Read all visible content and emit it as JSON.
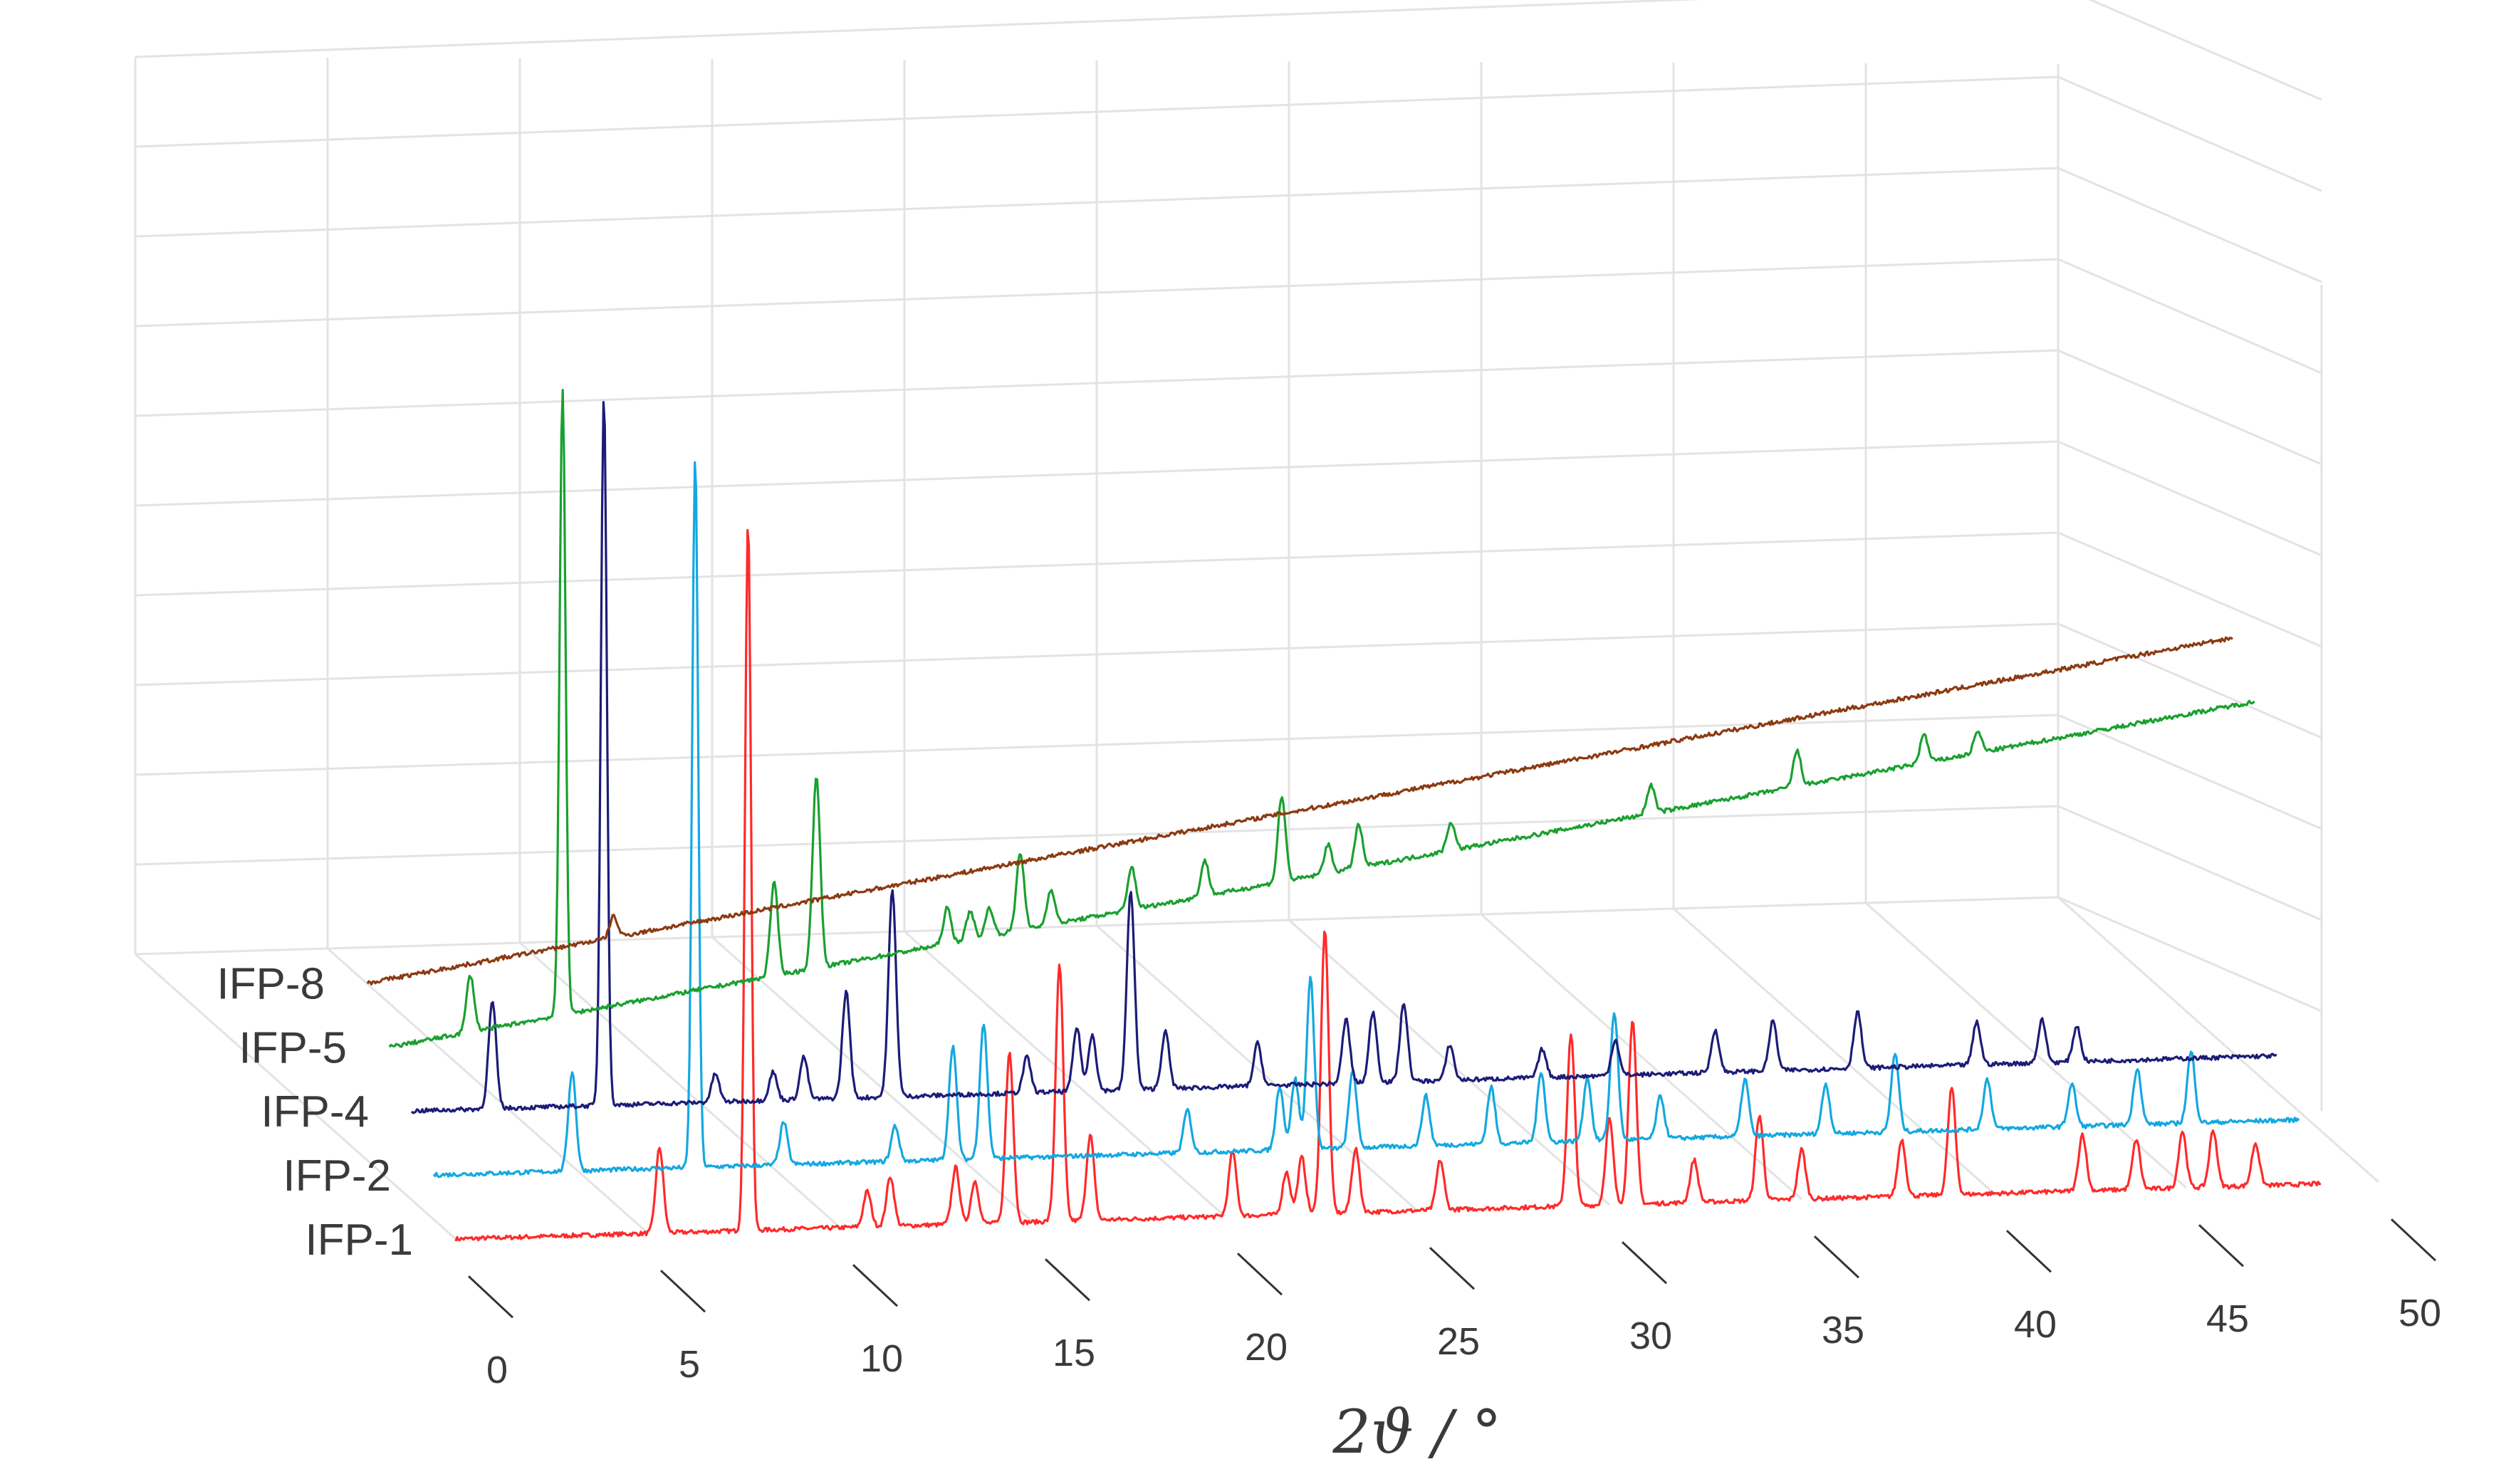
{
  "chart_data": {
    "type": "line",
    "title": "",
    "xlabel": "2ϑ / °",
    "ylabel": "",
    "xlim": [
      0,
      50
    ],
    "x_ticks": [
      "0",
      "5",
      "10",
      "15",
      "20",
      "25",
      "30",
      "35",
      "40",
      "45",
      "50"
    ],
    "grid": true,
    "view": "3D waterfall (offset stacked series)",
    "series": [
      {
        "name": "IFP-1",
        "color": "#ff2a2a",
        "baseline_trend": 0.0,
        "peaks": [
          {
            "x": 5.3,
            "h": 0.12
          },
          {
            "x": 7.6,
            "h": 1.0
          },
          {
            "x": 10.7,
            "h": 0.05
          },
          {
            "x": 11.3,
            "h": 0.07
          },
          {
            "x": 13.0,
            "h": 0.08
          },
          {
            "x": 13.5,
            "h": 0.06
          },
          {
            "x": 14.4,
            "h": 0.24
          },
          {
            "x": 15.7,
            "h": 0.36
          },
          {
            "x": 16.5,
            "h": 0.12
          },
          {
            "x": 20.2,
            "h": 0.09
          },
          {
            "x": 21.6,
            "h": 0.06
          },
          {
            "x": 22.0,
            "h": 0.08
          },
          {
            "x": 22.6,
            "h": 0.4
          },
          {
            "x": 23.4,
            "h": 0.09
          },
          {
            "x": 25.6,
            "h": 0.07
          },
          {
            "x": 29.0,
            "h": 0.24
          },
          {
            "x": 30.0,
            "h": 0.12
          },
          {
            "x": 30.6,
            "h": 0.26
          },
          {
            "x": 32.2,
            "h": 0.06
          },
          {
            "x": 33.9,
            "h": 0.12
          },
          {
            "x": 35.0,
            "h": 0.07
          },
          {
            "x": 37.6,
            "h": 0.08
          },
          {
            "x": 38.9,
            "h": 0.15
          },
          {
            "x": 42.3,
            "h": 0.08
          },
          {
            "x": 43.7,
            "h": 0.07
          },
          {
            "x": 44.9,
            "h": 0.08
          },
          {
            "x": 45.7,
            "h": 0.08
          },
          {
            "x": 46.8,
            "h": 0.06
          }
        ]
      },
      {
        "name": "IFP-2",
        "color": "#14a8e0",
        "baseline_trend": 0.0,
        "peaks": [
          {
            "x": 3.6,
            "h": 0.14
          },
          {
            "x": 6.8,
            "h": 1.0
          },
          {
            "x": 9.1,
            "h": 0.06
          },
          {
            "x": 12.0,
            "h": 0.05
          },
          {
            "x": 13.5,
            "h": 0.16
          },
          {
            "x": 14.3,
            "h": 0.19
          },
          {
            "x": 19.6,
            "h": 0.06
          },
          {
            "x": 22.0,
            "h": 0.09
          },
          {
            "x": 22.4,
            "h": 0.1
          },
          {
            "x": 22.8,
            "h": 0.24
          },
          {
            "x": 23.9,
            "h": 0.11
          },
          {
            "x": 25.8,
            "h": 0.07
          },
          {
            "x": 27.5,
            "h": 0.08
          },
          {
            "x": 28.8,
            "h": 0.1
          },
          {
            "x": 30.0,
            "h": 0.09
          },
          {
            "x": 30.7,
            "h": 0.18
          },
          {
            "x": 31.9,
            "h": 0.06
          },
          {
            "x": 34.1,
            "h": 0.08
          },
          {
            "x": 36.2,
            "h": 0.07
          },
          {
            "x": 38.0,
            "h": 0.11
          },
          {
            "x": 40.4,
            "h": 0.07
          },
          {
            "x": 42.6,
            "h": 0.06
          },
          {
            "x": 44.3,
            "h": 0.08
          },
          {
            "x": 45.7,
            "h": 0.1
          }
        ]
      },
      {
        "name": "IFP-4",
        "color": "#1c1c78",
        "baseline_trend": 0.0,
        "peaks": [
          {
            "x": 2.1,
            "h": 0.15
          },
          {
            "x": 5.0,
            "h": 1.0
          },
          {
            "x": 7.9,
            "h": 0.04
          },
          {
            "x": 9.4,
            "h": 0.04
          },
          {
            "x": 10.2,
            "h": 0.06
          },
          {
            "x": 11.3,
            "h": 0.15
          },
          {
            "x": 12.5,
            "h": 0.29
          },
          {
            "x": 16.0,
            "h": 0.05
          },
          {
            "x": 17.3,
            "h": 0.09
          },
          {
            "x": 17.7,
            "h": 0.08
          },
          {
            "x": 18.7,
            "h": 0.28
          },
          {
            "x": 19.6,
            "h": 0.08
          },
          {
            "x": 22.0,
            "h": 0.06
          },
          {
            "x": 24.3,
            "h": 0.09
          },
          {
            "x": 25.0,
            "h": 0.1
          },
          {
            "x": 25.8,
            "h": 0.11
          },
          {
            "x": 27.0,
            "h": 0.05
          },
          {
            "x": 29.4,
            "h": 0.04
          },
          {
            "x": 31.3,
            "h": 0.05
          },
          {
            "x": 33.9,
            "h": 0.06
          },
          {
            "x": 35.4,
            "h": 0.07
          },
          {
            "x": 37.6,
            "h": 0.08
          },
          {
            "x": 40.7,
            "h": 0.06
          },
          {
            "x": 42.4,
            "h": 0.06
          },
          {
            "x": 43.3,
            "h": 0.05
          }
        ]
      },
      {
        "name": "IFP-5",
        "color": "#1aa030",
        "baseline_trend": 0.42,
        "peaks": [
          {
            "x": 2.1,
            "h": 0.08
          },
          {
            "x": 4.5,
            "h": 0.88
          },
          {
            "x": 10.0,
            "h": 0.13
          },
          {
            "x": 11.1,
            "h": 0.27
          },
          {
            "x": 14.5,
            "h": 0.05
          },
          {
            "x": 15.1,
            "h": 0.04
          },
          {
            "x": 15.6,
            "h": 0.04
          },
          {
            "x": 16.4,
            "h": 0.11
          },
          {
            "x": 17.2,
            "h": 0.05
          },
          {
            "x": 19.3,
            "h": 0.06
          },
          {
            "x": 21.2,
            "h": 0.05
          },
          {
            "x": 23.2,
            "h": 0.12
          },
          {
            "x": 24.4,
            "h": 0.04
          },
          {
            "x": 25.2,
            "h": 0.06
          },
          {
            "x": 27.6,
            "h": 0.04
          },
          {
            "x": 32.8,
            "h": 0.04
          },
          {
            "x": 36.6,
            "h": 0.05
          },
          {
            "x": 39.9,
            "h": 0.04
          },
          {
            "x": 41.3,
            "h": 0.03
          }
        ]
      },
      {
        "name": "IFP-8",
        "color": "#8b3a12",
        "baseline_trend": 0.42,
        "peaks": [
          {
            "x": 6.4,
            "h": 0.03
          }
        ]
      }
    ]
  }
}
